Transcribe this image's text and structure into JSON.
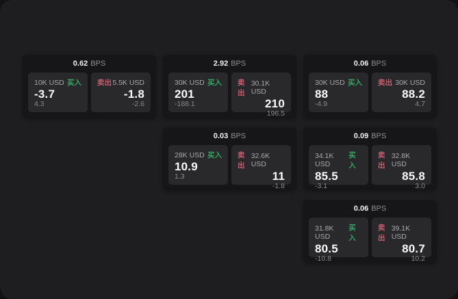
{
  "labels": {
    "buy": "买入",
    "sell": "卖出",
    "bps": "BPS"
  },
  "colors": {
    "buy": "#35a566",
    "sell": "#c95c6e"
  },
  "cards": [
    {
      "bps": "0.62",
      "col": 1,
      "row": 1,
      "buy": {
        "amount": "10K USD",
        "value": "-3.7",
        "sub": "4.3"
      },
      "sell": {
        "amount": "5.5K USD",
        "value": "-1.8",
        "sub": "-2.6"
      }
    },
    {
      "bps": "2.92",
      "col": 2,
      "row": 1,
      "buy": {
        "amount": "30K USD",
        "value": "201",
        "sub": "-188.1"
      },
      "sell": {
        "amount": "30.1K USD",
        "value": "210",
        "sub": "196.5"
      }
    },
    {
      "bps": "0.06",
      "col": 3,
      "row": 1,
      "buy": {
        "amount": "30K USD",
        "value": "88",
        "sub": "-4.9"
      },
      "sell": {
        "amount": "30K USD",
        "value": "88.2",
        "sub": "4.7"
      }
    },
    {
      "bps": "0.03",
      "col": 2,
      "row": 2,
      "buy": {
        "amount": "28K USD",
        "value": "10.9",
        "sub": "1.3"
      },
      "sell": {
        "amount": "32.6K USD",
        "value": "11",
        "sub": "-1.8"
      }
    },
    {
      "bps": "0.09",
      "col": 3,
      "row": 2,
      "buy": {
        "amount": "34.1K USD",
        "value": "85.5",
        "sub": "-3.1"
      },
      "sell": {
        "amount": "32.8K USD",
        "value": "85.8",
        "sub": "3.0"
      }
    },
    {
      "bps": "0.06",
      "col": 3,
      "row": 3,
      "buy": {
        "amount": "31.8K USD",
        "value": "80.5",
        "sub": "-10.8"
      },
      "sell": {
        "amount": "39.1K USD",
        "value": "80.7",
        "sub": "10.2"
      }
    }
  ]
}
